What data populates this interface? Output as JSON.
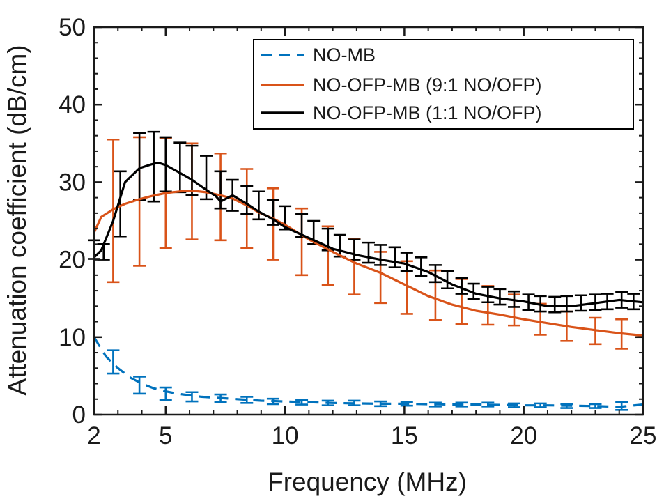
{
  "chart_data": {
    "type": "line",
    "title": "",
    "xlabel": "Frequency (MHz)",
    "ylabel": "Attenuation coefficient (dB/cm)",
    "xlim": [
      2,
      25
    ],
    "ylim": [
      0,
      50
    ],
    "xticks": [
      2,
      5,
      10,
      15,
      20,
      25
    ],
    "yticks": [
      0,
      10,
      20,
      30,
      40,
      50
    ],
    "grid": false,
    "legend_position": "top-right",
    "series": [
      {
        "name": "NO-MB",
        "color": "#0072BD",
        "style": "dashed",
        "x": [
          2,
          2.5,
          3,
          3.5,
          4,
          4.5,
          5,
          5.5,
          6,
          6.5,
          7,
          7.5,
          8,
          8.5,
          9,
          9.5,
          10,
          11,
          12,
          13,
          14,
          15,
          16,
          17,
          18,
          19,
          20,
          21,
          22,
          23,
          24,
          25
        ],
        "y": [
          10,
          7.5,
          6,
          4.8,
          4,
          3.4,
          3,
          2.7,
          2.5,
          2.3,
          2.2,
          2.1,
          2,
          1.9,
          1.8,
          1.75,
          1.7,
          1.6,
          1.5,
          1.45,
          1.4,
          1.4,
          1.35,
          1.3,
          1.3,
          1.25,
          1.2,
          1.2,
          1.15,
          1.1,
          1.0,
          1.3
        ],
        "error_x": [
          2.8,
          3.9,
          5.0,
          6.1,
          7.3,
          8.4,
          9.5,
          10.7,
          11.8,
          12.9,
          14.0,
          15.1,
          16.3,
          17.4,
          18.5,
          19.6,
          20.7,
          21.8,
          23.0,
          24.1
        ],
        "error_y": [
          6.8,
          3.8,
          2.7,
          2.3,
          2.1,
          1.9,
          1.7,
          1.6,
          1.5,
          1.5,
          1.4,
          1.4,
          1.3,
          1.3,
          1.3,
          1.2,
          1.2,
          1.1,
          1.1,
          1.1
        ],
        "error_half": [
          1.5,
          1.1,
          0.8,
          0.6,
          0.5,
          0.4,
          0.35,
          0.3,
          0.3,
          0.3,
          0.3,
          0.25,
          0.25,
          0.25,
          0.25,
          0.25,
          0.25,
          0.25,
          0.25,
          0.5
        ]
      },
      {
        "name": "NO-OFP-MB (9:1 NO/OFP)",
        "color": "#D95319",
        "style": "solid",
        "x": [
          2,
          2.3,
          2.8,
          3.3,
          3.9,
          4.4,
          5.0,
          5.6,
          6.1,
          6.7,
          7.3,
          7.8,
          8.4,
          8.9,
          9.5,
          10,
          11,
          12,
          13,
          14,
          15,
          16,
          17,
          18,
          19,
          20,
          21,
          22,
          23,
          24,
          25
        ],
        "y": [
          23.5,
          25.5,
          26.5,
          27.2,
          27.8,
          28.2,
          28.6,
          28.8,
          28.9,
          28.7,
          28.3,
          27.9,
          27.0,
          26.1,
          25.3,
          24.5,
          22.6,
          21.0,
          19.5,
          18.3,
          16.8,
          15.3,
          14.2,
          13.4,
          12.9,
          12.3,
          11.8,
          11.3,
          10.9,
          10.5,
          10.2
        ],
        "error_x": [
          2.8,
          3.9,
          5.0,
          6.1,
          7.3,
          8.4,
          9.5,
          10.7,
          11.8,
          12.9,
          14.0,
          15.1,
          16.3,
          17.4,
          18.5,
          19.6,
          20.7,
          21.8,
          23.0,
          24.1
        ],
        "error_y": [
          26.3,
          27.5,
          28.6,
          28.8,
          28.1,
          26.6,
          24.6,
          22.3,
          20.5,
          19.1,
          17.7,
          16.4,
          15.4,
          14.6,
          14.1,
          13.5,
          12.3,
          11.4,
          10.8,
          10.4
        ],
        "error_half": [
          9.2,
          8.3,
          7.1,
          6.2,
          5.6,
          5.1,
          4.6,
          4.3,
          3.8,
          3.6,
          3.3,
          3.4,
          3.2,
          2.9,
          2.5,
          2.0,
          2.0,
          1.9,
          1.7,
          1.9
        ]
      },
      {
        "name": "NO-OFP-MB (1:1 NO/OFP)",
        "color": "#000000",
        "style": "solid",
        "x": [
          2,
          2.3,
          2.8,
          3.3,
          3.9,
          4.4,
          4.7,
          5.0,
          5.6,
          6.1,
          6.7,
          7.1,
          7.3,
          7.8,
          8.4,
          8.9,
          9.5,
          10,
          11,
          12,
          13,
          14,
          15,
          16,
          17,
          18,
          19,
          20,
          21,
          22,
          23,
          24,
          25
        ],
        "y": [
          20.3,
          21.2,
          25.0,
          30.0,
          31.8,
          32.3,
          32.5,
          32.2,
          31.2,
          30.3,
          29.0,
          28.2,
          27.5,
          28.3,
          27.2,
          26.2,
          25.2,
          24.2,
          22.8,
          21.4,
          20.6,
          20.0,
          19.5,
          18.4,
          16.8,
          15.6,
          15.0,
          14.6,
          14.0,
          14.0,
          14.4,
          14.8,
          14.5
        ],
        "error_x": [
          2.0,
          2.4,
          3.1,
          3.9,
          4.5,
          5.0,
          5.6,
          6.1,
          6.7,
          7.3,
          7.8,
          8.4,
          8.9,
          9.5,
          10.0,
          10.7,
          11.2,
          11.8,
          12.3,
          12.9,
          13.5,
          14.0,
          14.6,
          15.1,
          15.7,
          16.3,
          16.8,
          17.4,
          17.9,
          18.5,
          19.0,
          19.6,
          20.2,
          20.7,
          21.3,
          21.8,
          22.4,
          23.0,
          23.5,
          24.1,
          24.6
        ],
        "error_y": [
          21.3,
          21.0,
          27.2,
          32.0,
          32.0,
          32.3,
          31.9,
          31.5,
          30.6,
          29.0,
          28.3,
          27.7,
          27.0,
          26.1,
          25.4,
          24.4,
          23.5,
          22.6,
          21.8,
          21.3,
          20.9,
          20.6,
          20.3,
          19.7,
          19.1,
          18.2,
          17.4,
          16.6,
          15.9,
          15.5,
          15.2,
          14.9,
          14.5,
          14.3,
          14.2,
          14.3,
          14.4,
          14.5,
          14.6,
          14.8,
          14.6
        ],
        "error_half": [
          1.2,
          1.0,
          4.2,
          4.3,
          4.5,
          3.5,
          3.2,
          3.2,
          2.8,
          2.4,
          2.0,
          1.8,
          1.8,
          1.6,
          1.5,
          1.5,
          1.5,
          1.4,
          1.4,
          1.3,
          1.3,
          1.3,
          1.3,
          1.2,
          1.2,
          1.1,
          1.1,
          1.0,
          1.0,
          1.0,
          1.0,
          1.0,
          1.0,
          1.0,
          1.0,
          1.0,
          1.0,
          1.0,
          1.0,
          1.0,
          1.0
        ]
      }
    ]
  }
}
